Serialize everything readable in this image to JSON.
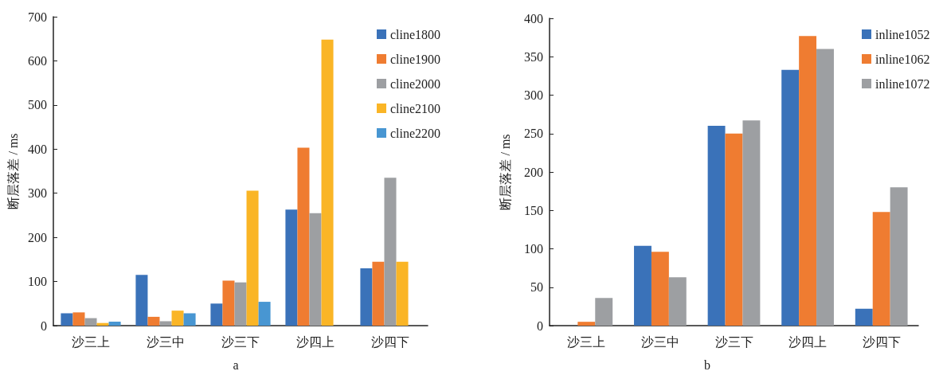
{
  "chart_data": [
    {
      "type": "bar",
      "title": "a",
      "ylabel": "断层落差 / ms",
      "categories": [
        "沙三上",
        "沙三中",
        "沙三下",
        "沙四上",
        "沙四下"
      ],
      "ylim": [
        0,
        700
      ],
      "yticks": [
        0,
        100,
        200,
        300,
        400,
        500,
        600,
        700
      ],
      "grid": false,
      "legend": "top right",
      "series": [
        {
          "name": "cline1800",
          "color": "#3a72b9",
          "values": [
            28,
            115,
            50,
            263,
            130
          ]
        },
        {
          "name": "cline1900",
          "color": "#ef7c31",
          "values": [
            30,
            20,
            102,
            403,
            145
          ]
        },
        {
          "name": "cline2000",
          "color": "#9d9fa2",
          "values": [
            17,
            10,
            98,
            255,
            335
          ]
        },
        {
          "name": "cline2100",
          "color": "#fab526",
          "values": [
            6,
            34,
            306,
            648,
            145
          ]
        },
        {
          "name": "cline2200",
          "color": "#4896d2",
          "values": [
            9,
            28,
            54,
            null,
            null
          ]
        }
      ]
    },
    {
      "type": "bar",
      "title": "b",
      "ylabel": "断层落差 / ms",
      "categories": [
        "沙三上",
        "沙三中",
        "沙三下",
        "沙四上",
        "沙四下"
      ],
      "ylim": [
        0,
        400
      ],
      "yticks": [
        0,
        50,
        100,
        150,
        200,
        250,
        300,
        350,
        400
      ],
      "grid": false,
      "legend": "top right",
      "series": [
        {
          "name": "inline1052",
          "color": "#3a72b9",
          "values": [
            null,
            104,
            260,
            333,
            22
          ]
        },
        {
          "name": "inline1062",
          "color": "#ef7c31",
          "values": [
            5,
            96,
            250,
            377,
            148
          ]
        },
        {
          "name": "inline1072",
          "color": "#9d9fa2",
          "values": [
            36,
            63,
            267,
            360,
            180
          ]
        }
      ]
    }
  ]
}
